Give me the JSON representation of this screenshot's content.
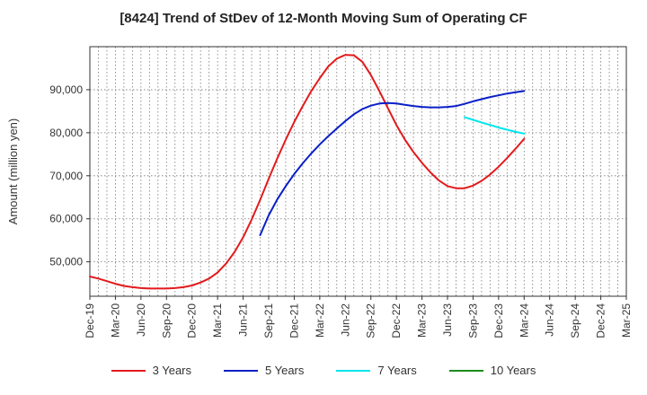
{
  "chart_data": {
    "type": "line",
    "title": "[8424]  Trend of StDev of 12-Month Moving Sum of Operating CF",
    "ylabel": "Amount (million yen)",
    "xlabel": "",
    "ylim": [
      42000,
      100000
    ],
    "yticks": [
      50000,
      60000,
      70000,
      80000,
      90000
    ],
    "ytick_labels": [
      "50,000",
      "60,000",
      "70,000",
      "80,000",
      "90,000"
    ],
    "x_categories": [
      "Dec-19",
      "Mar-20",
      "Jun-20",
      "Sep-20",
      "Dec-20",
      "Mar-21",
      "Jun-21",
      "Sep-21",
      "Dec-21",
      "Mar-22",
      "Jun-22",
      "Sep-22",
      "Dec-22",
      "Mar-23",
      "Jun-23",
      "Sep-23",
      "Dec-23",
      "Mar-24",
      "Jun-24",
      "Sep-24",
      "Dec-24",
      "Mar-25"
    ],
    "grid": true,
    "legend_position": "bottom",
    "series": [
      {
        "name": "3 Years",
        "color": "#e31a1c",
        "points": [
          [
            "Dec-19",
            46600
          ],
          [
            "Jan-20",
            46100
          ],
          [
            "Feb-20",
            45500
          ],
          [
            "Mar-20",
            44900
          ],
          [
            "Apr-20",
            44400
          ],
          [
            "May-20",
            44100
          ],
          [
            "Jun-20",
            43900
          ],
          [
            "Jul-20",
            43800
          ],
          [
            "Aug-20",
            43800
          ],
          [
            "Sep-20",
            43800
          ],
          [
            "Oct-20",
            43900
          ],
          [
            "Nov-20",
            44100
          ],
          [
            "Dec-20",
            44500
          ],
          [
            "Jan-21",
            45200
          ],
          [
            "Feb-21",
            46100
          ],
          [
            "Mar-21",
            47500
          ],
          [
            "Apr-21",
            49600
          ],
          [
            "May-21",
            52300
          ],
          [
            "Jun-21",
            55700
          ],
          [
            "Jul-21",
            59800
          ],
          [
            "Aug-21",
            64400
          ],
          [
            "Sep-21",
            69300
          ],
          [
            "Oct-21",
            74000
          ],
          [
            "Nov-21",
            78400
          ],
          [
            "Dec-21",
            82500
          ],
          [
            "Jan-22",
            86200
          ],
          [
            "Feb-22",
            89700
          ],
          [
            "Mar-22",
            92700
          ],
          [
            "Apr-22",
            95400
          ],
          [
            "May-22",
            97200
          ],
          [
            "Jun-22",
            98100
          ],
          [
            "Jul-22",
            98000
          ],
          [
            "Aug-22",
            96500
          ],
          [
            "Sep-22",
            93400
          ],
          [
            "Oct-22",
            89700
          ],
          [
            "Nov-22",
            85700
          ],
          [
            "Dec-22",
            81800
          ],
          [
            "Jan-23",
            78400
          ],
          [
            "Feb-23",
            75500
          ],
          [
            "Mar-23",
            73000
          ],
          [
            "Apr-23",
            70800
          ],
          [
            "May-23",
            68900
          ],
          [
            "Jun-23",
            67600
          ],
          [
            "Jul-23",
            67100
          ],
          [
            "Aug-23",
            67100
          ],
          [
            "Sep-23",
            67700
          ],
          [
            "Oct-23",
            68800
          ],
          [
            "Nov-23",
            70300
          ],
          [
            "Dec-23",
            72100
          ],
          [
            "Jan-24",
            74100
          ],
          [
            "Feb-24",
            76300
          ],
          [
            "Mar-24",
            78600
          ]
        ]
      },
      {
        "name": "5 Years",
        "color": "#0a1fc8",
        "points": [
          [
            "Aug-21",
            56200
          ],
          [
            "Sep-21",
            60800
          ],
          [
            "Oct-21",
            64500
          ],
          [
            "Nov-21",
            67600
          ],
          [
            "Dec-21",
            70400
          ],
          [
            "Jan-22",
            72900
          ],
          [
            "Feb-22",
            75200
          ],
          [
            "Mar-22",
            77300
          ],
          [
            "Apr-22",
            79200
          ],
          [
            "May-22",
            81000
          ],
          [
            "Jun-22",
            82700
          ],
          [
            "Jul-22",
            84300
          ],
          [
            "Aug-22",
            85500
          ],
          [
            "Sep-22",
            86300
          ],
          [
            "Oct-22",
            86800
          ],
          [
            "Nov-22",
            86900
          ],
          [
            "Dec-22",
            86800
          ],
          [
            "Jan-23",
            86500
          ],
          [
            "Feb-23",
            86200
          ],
          [
            "Mar-23",
            86000
          ],
          [
            "Apr-23",
            85900
          ],
          [
            "May-23",
            85900
          ],
          [
            "Jun-23",
            86000
          ],
          [
            "Jul-23",
            86200
          ],
          [
            "Aug-23",
            86700
          ],
          [
            "Sep-23",
            87300
          ],
          [
            "Oct-23",
            87800
          ],
          [
            "Nov-23",
            88300
          ],
          [
            "Dec-23",
            88700
          ],
          [
            "Jan-24",
            89100
          ],
          [
            "Feb-24",
            89400
          ],
          [
            "Mar-24",
            89700
          ]
        ]
      },
      {
        "name": "7 Years",
        "color": "#00e5ee",
        "points": [
          [
            "Aug-23",
            83600
          ],
          [
            "Sep-23",
            83000
          ],
          [
            "Oct-23",
            82400
          ],
          [
            "Nov-23",
            81800
          ],
          [
            "Dec-23",
            81200
          ],
          [
            "Jan-24",
            80700
          ],
          [
            "Feb-24",
            80200
          ],
          [
            "Mar-24",
            79800
          ]
        ]
      },
      {
        "name": "10 Years",
        "color": "#1a8c1a",
        "points": []
      }
    ]
  }
}
